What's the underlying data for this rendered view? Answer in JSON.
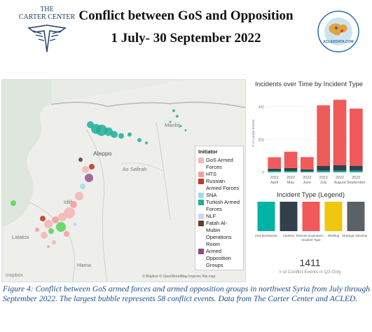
{
  "header": {
    "title_line1": "Conflict between GoS and Opposition",
    "title_line2": "1 July- 30 September 2022",
    "org_line1": "THE",
    "org_line2": "CARTER CENTER",
    "acled_badge": "ACLEDDATA.COM"
  },
  "map": {
    "labels": [
      "Aleppo",
      "As Safirah",
      "Hama",
      "Idlib",
      "Latakia",
      "Manbij"
    ],
    "attribution": "© Mapbox © OpenStreetMap Improve this map",
    "mapbox_logo": "mapbox",
    "legend": {
      "title": "Initiator",
      "items": [
        {
          "label": "GoS Armed Forces",
          "color": "#f4b6b6"
        },
        {
          "label": "HTS",
          "color": "#f5a0a0"
        },
        {
          "label": "Russian Armed Forces",
          "color": "#c0392b"
        },
        {
          "label": "SNA",
          "color": "#a6d9ee"
        },
        {
          "label": "Turkish Armed Forces",
          "color": "#1fae9b"
        },
        {
          "label": "NLF",
          "color": "#c9d8f0"
        },
        {
          "label": "Fatah Al-Mubin Operations Room",
          "color": "#6b3a2a"
        },
        {
          "label": "Armed Opposition Groups",
          "color": "#8b4a8b"
        }
      ]
    }
  },
  "chart_data": [
    {
      "type": "bar",
      "title": "Incidents over Time by Incident Type",
      "ylabel": "# of Conflict Events",
      "yticks": [
        "0",
        "200",
        "400"
      ],
      "ylim": [
        0,
        480
      ],
      "categories": [
        "2022 April",
        "2022 May",
        "2022 June",
        "2022 July",
        "2022 August",
        "2022 September"
      ],
      "series": [
        {
          "name": "Aerial Bombardment",
          "color": "#00b3a4",
          "values": [
            8,
            8,
            6,
            10,
            10,
            10
          ]
        },
        {
          "name": "Clashes",
          "color": "#33404a",
          "values": [
            14,
            18,
            12,
            30,
            34,
            30
          ]
        },
        {
          "name": "Remote Explosion/Incident Type",
          "color": "#f05a5a",
          "values": [
            70,
            100,
            75,
            370,
            400,
            350
          ]
        }
      ]
    },
    {
      "type": "bar",
      "title": "Incident Type (Legend)",
      "categories": [
        "Aerial Bombarde...",
        "Clashes",
        "Remote Explosion/... Incident Type",
        "Shelling",
        "Strategic Develop..."
      ],
      "colors": [
        "#00b3a4",
        "#33404a",
        "#f05a5a",
        "#f2c60f",
        "#5c6166"
      ]
    }
  ],
  "kpi": {
    "value": "1411",
    "label": "# of Conflict Events in Q3 Only"
  },
  "caption": "Figure 4: Conflict between GoS armed forces and armed opposition groups in northwest Syria from July through September 2022. The largest bubble represents 58 conflict events. Data from The Carter Center and ACLED."
}
